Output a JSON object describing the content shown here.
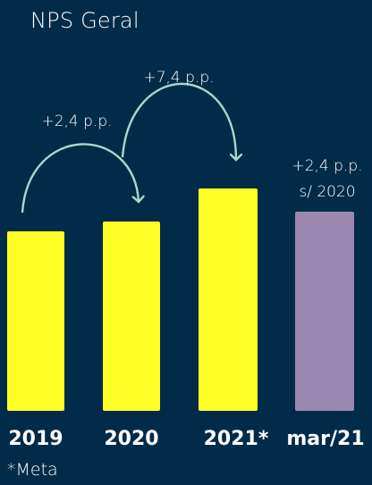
{
  "chart_data": {
    "type": "bar",
    "title": "NPS Geral",
    "categories": [
      "2019",
      "2020",
      "2021*",
      "mar/21"
    ],
    "annotations": {
      "arrow_1": "+2,4 p.p.",
      "arrow_2": "+7,4 p.p.",
      "last_line1": "+2,4 p.p.",
      "last_line2": "s/ 2020"
    },
    "footnote": "*Meta",
    "colors": {
      "background": "#022b49",
      "bar": "#ffff26",
      "bar_highlight": "#9b88b0",
      "arrow": "#a7d8cc",
      "text": "#ffffff"
    }
  }
}
